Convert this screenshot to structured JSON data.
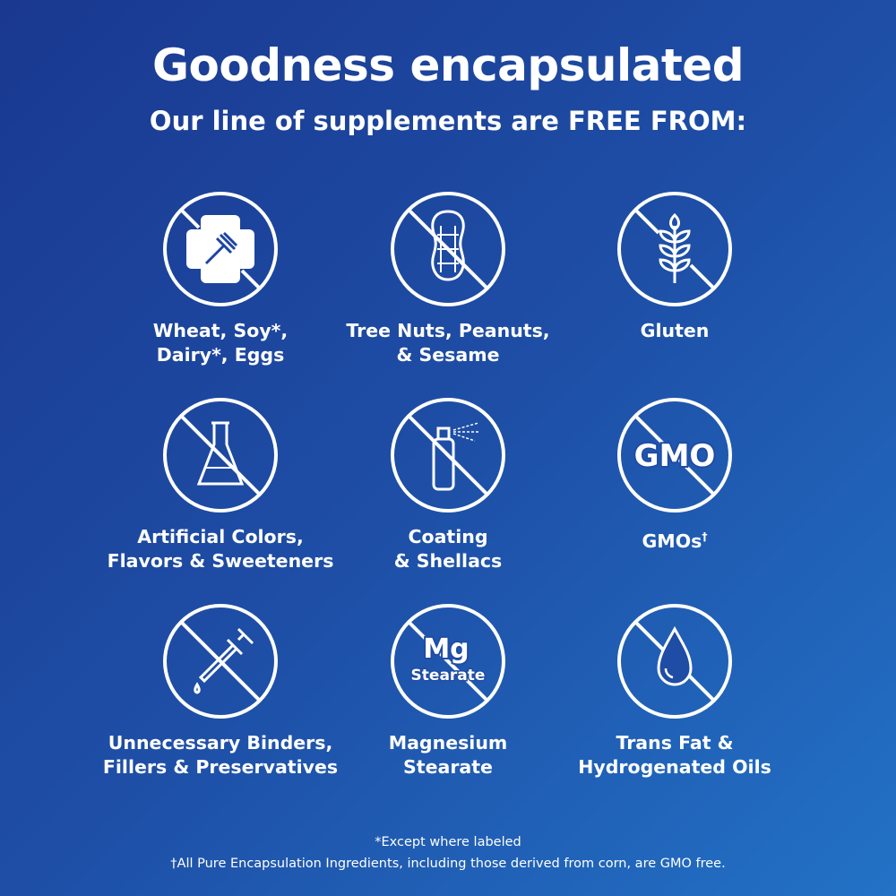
{
  "title": "Goodness encapsulated",
  "subtitle": "Our line of supplements are FREE FROM:",
  "items": [
    {
      "icon": "wheat-soy-dairy-eggs-icon",
      "label": "Wheat, Soy*,\nDairy*, Eggs"
    },
    {
      "icon": "peanut-icon",
      "label": "Tree Nuts, Peanuts,\n& Sesame"
    },
    {
      "icon": "wheat-stalk-icon",
      "label": "Gluten"
    },
    {
      "icon": "flask-icon",
      "label": "Artificial Colors,\nFlavors & Sweeteners"
    },
    {
      "icon": "spray-can-icon",
      "label": "Coating\n& Shellacs"
    },
    {
      "icon": "gmo-icon",
      "label": "GMOs",
      "icon_text": "GMO",
      "sup": "†"
    },
    {
      "icon": "dropper-icon",
      "label": "Unnecessary Binders,\nFillers & Preservatives"
    },
    {
      "icon": "mg-stearate-icon",
      "label": "Magnesium\nStearate",
      "icon_text": "Mg",
      "icon_subtext": "Stearate"
    },
    {
      "icon": "oil-drop-icon",
      "label": "Trans Fat &\nHydrogenated Oils"
    }
  ],
  "footnotes": [
    "*Except where labeled",
    "†All Pure Encapsulation Ingredients, including those derived from corn, are GMO free."
  ],
  "colors": {
    "background_start": "#1a3890",
    "background_end": "#2272c6",
    "foreground": "#ffffff"
  }
}
